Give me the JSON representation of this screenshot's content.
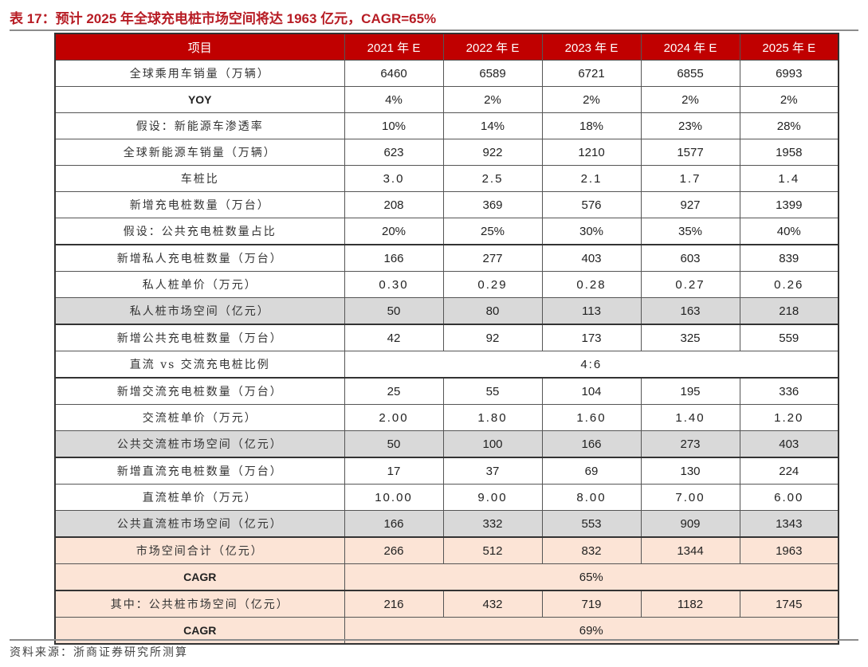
{
  "title": "表 17：预计 2025 年全球充电桩市场空间将达 1963 亿元，CAGR=65%",
  "source": "资料来源：浙商证券研究所测算",
  "colors": {
    "header_bg": "#c00000",
    "header_text": "#ffffff",
    "title_text": "#b71c24",
    "gray_row": "#d9d9d9",
    "pink_row": "#fce4d6"
  },
  "table": {
    "headers": [
      "项目",
      "2021 年 E",
      "2022 年 E",
      "2023 年 E",
      "2024 年 E",
      "2025 年 E"
    ],
    "rows": [
      {
        "label": "全球乘用车销量（万辆）",
        "values": [
          "6460",
          "6589",
          "6721",
          "6855",
          "6993"
        ]
      },
      {
        "label": "YOY",
        "values": [
          "4%",
          "2%",
          "2%",
          "2%",
          "2%"
        ]
      },
      {
        "label": "假设：新能源车渗透率",
        "values": [
          "10%",
          "14%",
          "18%",
          "23%",
          "28%"
        ]
      },
      {
        "label": "全球新能源车销量（万辆）",
        "values": [
          "623",
          "922",
          "1210",
          "1577",
          "1958"
        ]
      },
      {
        "label": "车桩比",
        "values": [
          "3.0",
          "2.5",
          "2.1",
          "1.7",
          "1.4"
        ]
      },
      {
        "label": "新增充电桩数量（万台）",
        "values": [
          "208",
          "369",
          "576",
          "927",
          "1399"
        ]
      },
      {
        "label": "假设：公共充电桩数量占比",
        "values": [
          "20%",
          "25%",
          "30%",
          "35%",
          "40%"
        ]
      },
      {
        "label": "新增私人充电桩数量（万台）",
        "values": [
          "166",
          "277",
          "403",
          "603",
          "839"
        ]
      },
      {
        "label": "私人桩单价（万元）",
        "values": [
          "0.30",
          "0.29",
          "0.28",
          "0.27",
          "0.26"
        ]
      },
      {
        "label": "私人桩市场空间（亿元）",
        "values": [
          "50",
          "80",
          "113",
          "163",
          "218"
        ]
      },
      {
        "label": "新增公共充电桩数量（万台）",
        "values": [
          "42",
          "92",
          "173",
          "325",
          "559"
        ]
      },
      {
        "label": "直流 vs 交流充电桩比例",
        "merged_value": "4:6"
      },
      {
        "label": "新增交流充电桩数量（万台）",
        "values": [
          "25",
          "55",
          "104",
          "195",
          "336"
        ]
      },
      {
        "label": "交流桩单价（万元）",
        "values": [
          "2.00",
          "1.80",
          "1.60",
          "1.40",
          "1.20"
        ]
      },
      {
        "label": "公共交流桩市场空间（亿元）",
        "values": [
          "50",
          "100",
          "166",
          "273",
          "403"
        ]
      },
      {
        "label": "新增直流充电桩数量（万台）",
        "values": [
          "17",
          "37",
          "69",
          "130",
          "224"
        ]
      },
      {
        "label": "直流桩单价（万元）",
        "values": [
          "10.00",
          "9.00",
          "8.00",
          "7.00",
          "6.00"
        ]
      },
      {
        "label": "公共直流桩市场空间（亿元）",
        "values": [
          "166",
          "332",
          "553",
          "909",
          "1343"
        ]
      },
      {
        "label": "市场空间合计（亿元）",
        "values": [
          "266",
          "512",
          "832",
          "1344",
          "1963"
        ]
      },
      {
        "label": "CAGR",
        "merged_value": "65%"
      },
      {
        "label": "其中：公共桩市场空间（亿元）",
        "values": [
          "216",
          "432",
          "719",
          "1182",
          "1745"
        ]
      },
      {
        "label": "CAGR",
        "merged_value": "69%"
      }
    ]
  }
}
